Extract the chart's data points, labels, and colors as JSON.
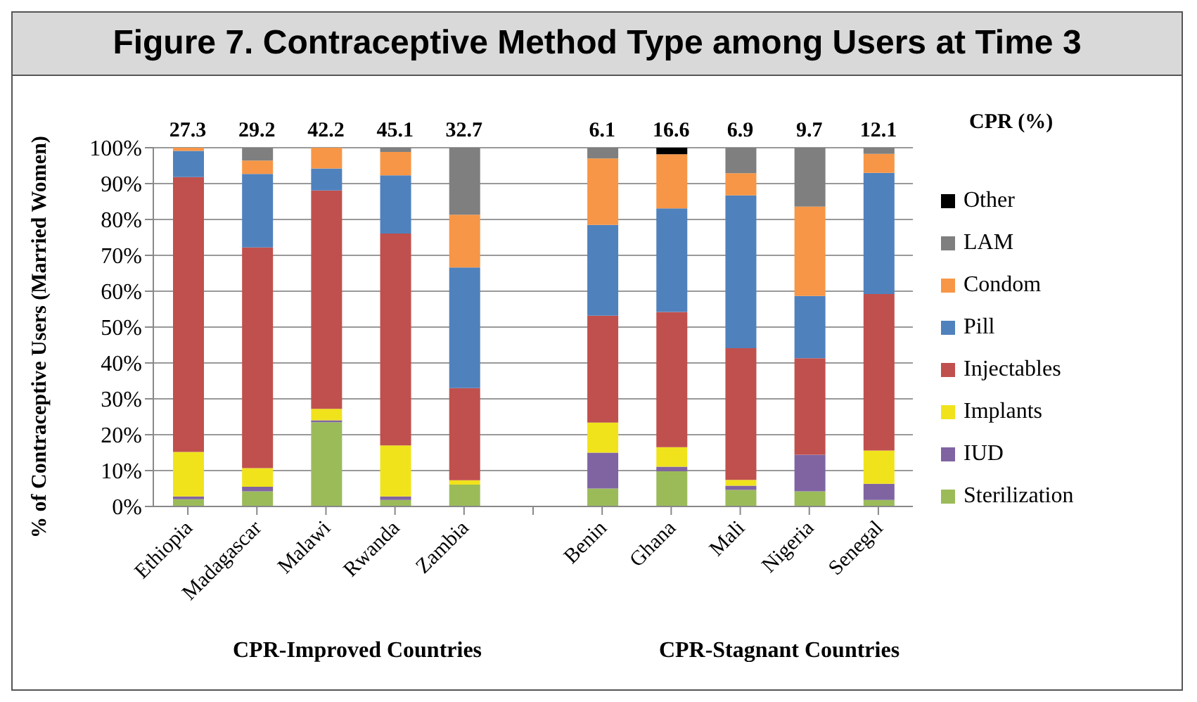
{
  "chart_data": {
    "type": "bar",
    "title": "Figure 7. Contraceptive Method Type among Users at Time 3",
    "ylabel": "% of Contraceptive Users (Married Women)",
    "categories": [
      "Ethiopia",
      "Madagascar",
      "Malawi",
      "Rwanda",
      "Zambia",
      null,
      "Benin",
      "Ghana",
      "Mali",
      "Nigeria",
      "Senegal"
    ],
    "stacked": true,
    "ylim": [
      0,
      100
    ],
    "yticks": [
      {
        "value": 0,
        "label": "0%"
      },
      {
        "value": 10,
        "label": "10%"
      },
      {
        "value": 20,
        "label": "20%"
      },
      {
        "value": 30,
        "label": "30%"
      },
      {
        "value": 40,
        "label": "40%"
      },
      {
        "value": 50,
        "label": "50%"
      },
      {
        "value": 60,
        "label": "60%"
      },
      {
        "value": 70,
        "label": "70%"
      },
      {
        "value": 80,
        "label": "80%"
      },
      {
        "value": 90,
        "label": "90%"
      },
      {
        "value": 100,
        "label": "100%"
      }
    ],
    "grid": "y",
    "legend": "right",
    "series": [
      {
        "name": "Sterilization",
        "color": "#9bbb59",
        "values": [
          2.0,
          4.2,
          23.5,
          1.8,
          6.1,
          null,
          5.0,
          9.8,
          4.6,
          4.2,
          1.8
        ]
      },
      {
        "name": "IUD",
        "color": "#8064a2",
        "values": [
          0.8,
          1.3,
          0.5,
          1.0,
          0,
          null,
          10.0,
          1.3,
          1.2,
          10.2,
          4.5
        ]
      },
      {
        "name": "Implants",
        "color": "#f0e31c",
        "values": [
          12.4,
          5.2,
          3.2,
          14.2,
          1.2,
          null,
          8.4,
          5.4,
          1.6,
          0,
          9.3
        ]
      },
      {
        "name": "Injectables",
        "color": "#c0504d",
        "values": [
          76.6,
          61.5,
          60.9,
          59.1,
          25.7,
          null,
          29.8,
          37.7,
          36.7,
          26.9,
          43.6
        ]
      },
      {
        "name": "Pill",
        "color": "#4f81bd",
        "values": [
          7.3,
          20.5,
          6.1,
          16.2,
          33.6,
          null,
          25.3,
          28.9,
          42.6,
          17.4,
          33.8
        ]
      },
      {
        "name": "Condom",
        "color": "#f79646",
        "values": [
          0.9,
          3.7,
          5.8,
          6.5,
          14.7,
          null,
          18.5,
          15.1,
          6.2,
          24.9,
          5.3
        ]
      },
      {
        "name": "LAM",
        "color": "#7f7f7f",
        "values": [
          0,
          3.6,
          0,
          1.2,
          18.7,
          null,
          3.0,
          0,
          7.1,
          16.4,
          1.7
        ]
      },
      {
        "name": "Other",
        "color": "#000000",
        "values": [
          0,
          0,
          0,
          0,
          0,
          null,
          0,
          1.8,
          0,
          0,
          0
        ]
      }
    ],
    "annotations": [
      "27.3",
      "29.2",
      "42.2",
      "45.1",
      "32.7",
      "6.1",
      "16.6",
      "6.9",
      "9.7",
      "12.1",
      "CPR (%)",
      "CPR-Improved Countries",
      "CPR-Stagnant Countries"
    ]
  }
}
